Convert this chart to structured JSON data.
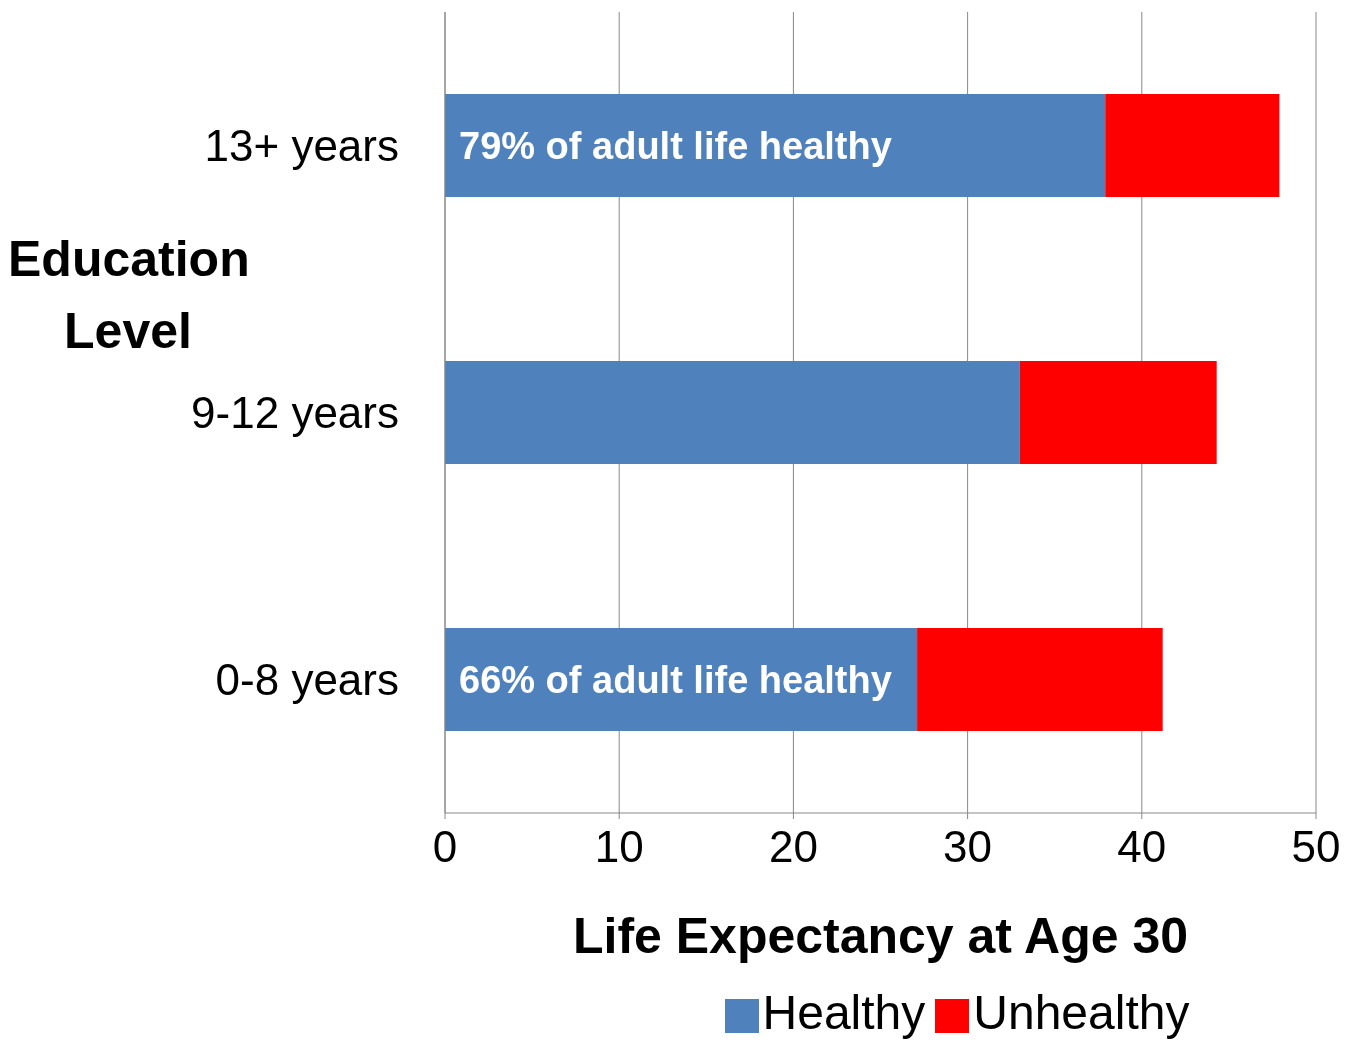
{
  "chart_data": {
    "type": "bar",
    "orientation": "horizontal",
    "stacked": true,
    "xlabel": "Life Expectancy at Age 30",
    "ylabel": "Education Level",
    "categories": [
      "13+ years",
      "9-12 years",
      "0-8 years"
    ],
    "series": [
      {
        "name": "Healthy",
        "color": "#4f81bd",
        "values": [
          37.9,
          33.0,
          27.1
        ]
      },
      {
        "name": "Unhealthy",
        "color": "#ff0000",
        "values": [
          10.0,
          11.3,
          14.1
        ]
      }
    ],
    "xlim": [
      0,
      50
    ],
    "xticks": [
      0,
      10,
      20,
      30,
      40,
      50
    ],
    "grid": "x",
    "legend": "bottom",
    "annotations": [
      "79% of adult life healthy",
      "66% of adult life healthy"
    ]
  }
}
